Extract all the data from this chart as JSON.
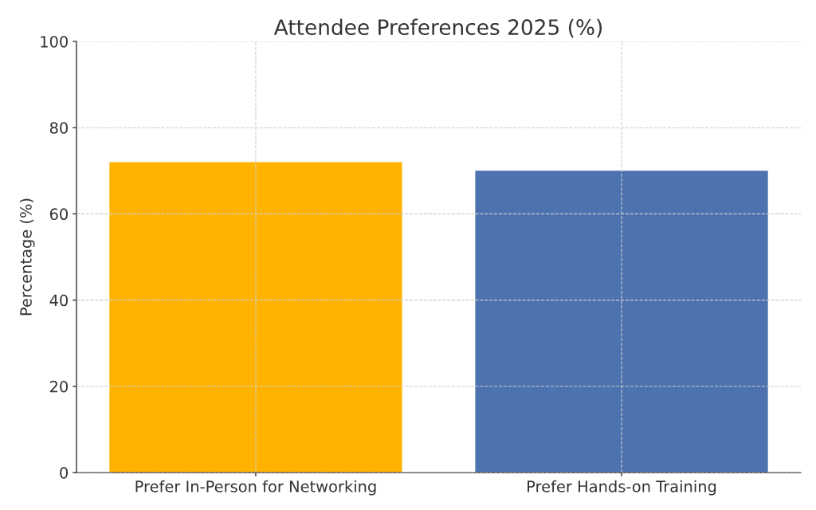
{
  "chart_data": {
    "type": "bar",
    "title": "Attendee Preferences 2025 (%)",
    "ylabel": "Percentage (%)",
    "categories": [
      "Prefer In-Person for Networking",
      "Prefer Hands-on Training"
    ],
    "values": [
      72,
      70
    ],
    "colors": [
      "#ffb300",
      "#4c72b0"
    ],
    "ylim": [
      0,
      100
    ],
    "yticks": [
      0,
      20,
      40,
      60,
      80,
      100
    ],
    "grid": true
  }
}
